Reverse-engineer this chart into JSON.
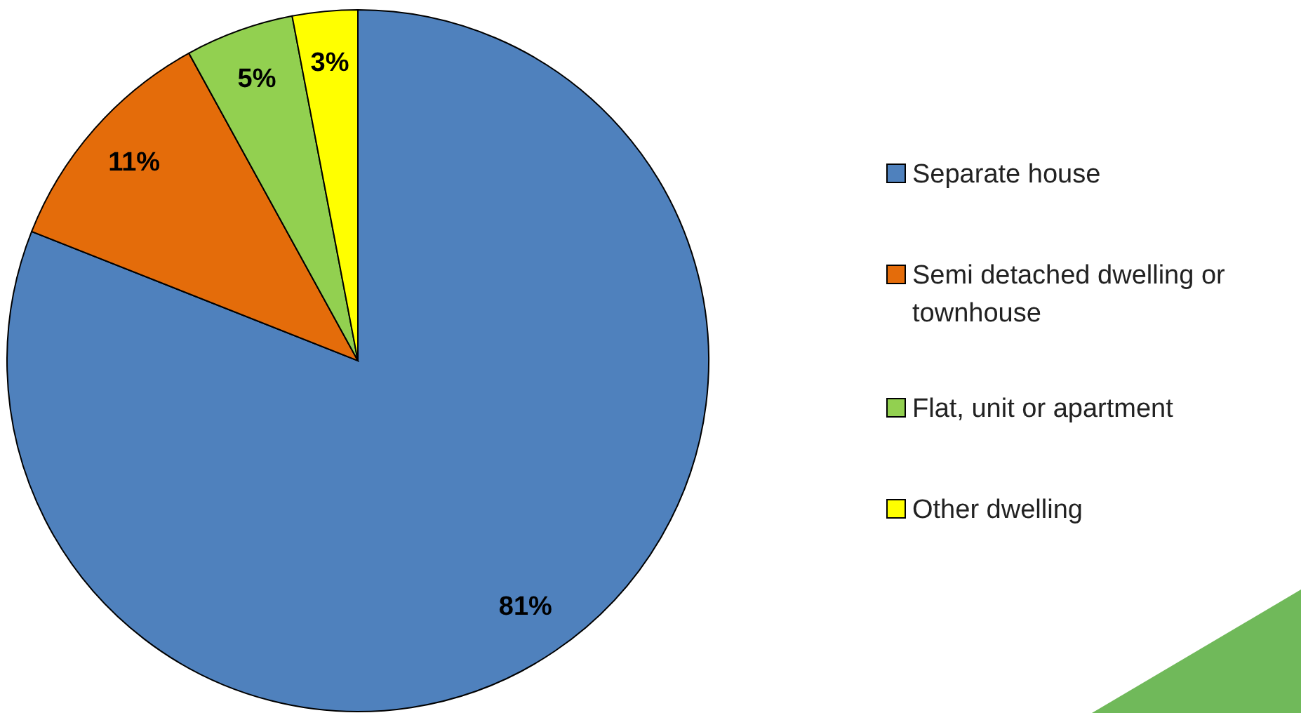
{
  "chart_data": {
    "type": "pie",
    "categories": [
      "Separate house",
      "Semi detached dwelling or townhouse",
      "Flat, unit or apartment",
      "Other dwelling"
    ],
    "values": [
      81,
      11,
      5,
      3
    ],
    "colors": [
      "#4f81bd",
      "#e46c0a",
      "#92d050",
      "#ffff00"
    ],
    "value_labels": [
      "81%",
      "11%",
      "5%",
      "3%"
    ],
    "legend": "right"
  }
}
